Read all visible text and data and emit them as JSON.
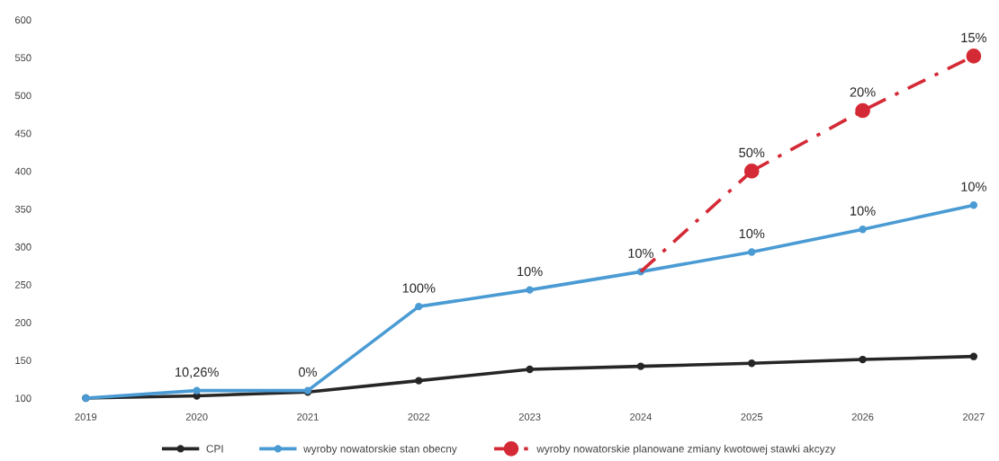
{
  "chart_data": {
    "type": "line",
    "categories": [
      "2019",
      "2020",
      "2021",
      "2022",
      "2023",
      "2024",
      "2025",
      "2026",
      "2027"
    ],
    "ylim": [
      100,
      600
    ],
    "yticks": [
      100,
      150,
      200,
      250,
      300,
      350,
      400,
      450,
      500,
      550,
      600
    ],
    "grid": false,
    "legend": "bottom",
    "series": [
      {
        "name": "CPI",
        "color": "#262626",
        "marker": "circle",
        "line_style": "solid",
        "values": [
          100,
          103,
          108,
          123,
          138,
          142,
          146,
          151,
          155
        ]
      },
      {
        "name": "wyroby nowatorskie stan obecny",
        "color": "#4a9bd4",
        "marker": "circle",
        "line_style": "solid",
        "values": [
          100,
          110,
          110,
          221,
          243,
          267,
          293,
          323,
          355
        ]
      },
      {
        "color": "#d42a35",
        "line_style": "dashdot",
        "values": [
          null,
          null,
          null,
          null,
          null,
          267,
          400,
          null,
          null
        ]
      },
      {
        "name": "wyroby nowatorskie planowane zmiany kwotowej stawki akcyzy",
        "color": "#d42a35",
        "marker": "circle",
        "line_style": "dashdot",
        "values": [
          null,
          null,
          null,
          null,
          null,
          null,
          400,
          480,
          552
        ]
      }
    ],
    "annotations": [
      {
        "text": "10,26%",
        "x": "2020",
        "y": 110
      },
      {
        "text": "0%",
        "x": "2021",
        "y": 110
      },
      {
        "text": "100%",
        "x": "2022",
        "y": 221
      },
      {
        "text": "10%",
        "x": "2023",
        "y": 243
      },
      {
        "text": "10%",
        "x": "2024",
        "y": 267
      },
      {
        "text": "10%",
        "x": "2025",
        "y": 293
      },
      {
        "text": "10%",
        "x": "2026",
        "y": 323
      },
      {
        "text": "10%",
        "x": "2027",
        "y": 355
      },
      {
        "text": "50%",
        "x": "2025",
        "y": 400
      },
      {
        "text": "20%",
        "x": "2026",
        "y": 480
      },
      {
        "text": "15%",
        "x": "2027",
        "y": 552
      }
    ]
  }
}
